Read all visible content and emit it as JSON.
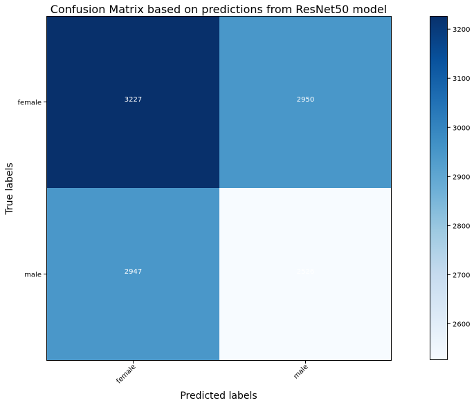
{
  "chart_data": {
    "type": "heatmap",
    "title": "Confusion Matrix based on predictions from ResNet50 model",
    "xlabel": "Predicted labels",
    "ylabel": "True labels",
    "x_categories": [
      "female",
      "male"
    ],
    "y_categories": [
      "female",
      "male"
    ],
    "values": [
      [
        3227,
        2950
      ],
      [
        2947,
        2526
      ]
    ],
    "colormap": "Blues",
    "colorbar": {
      "range": [
        2526,
        3227
      ],
      "ticks": [
        2600,
        2700,
        2800,
        2900,
        3000,
        3100,
        3200
      ]
    },
    "text_color": "#ffffff",
    "grid": false
  }
}
